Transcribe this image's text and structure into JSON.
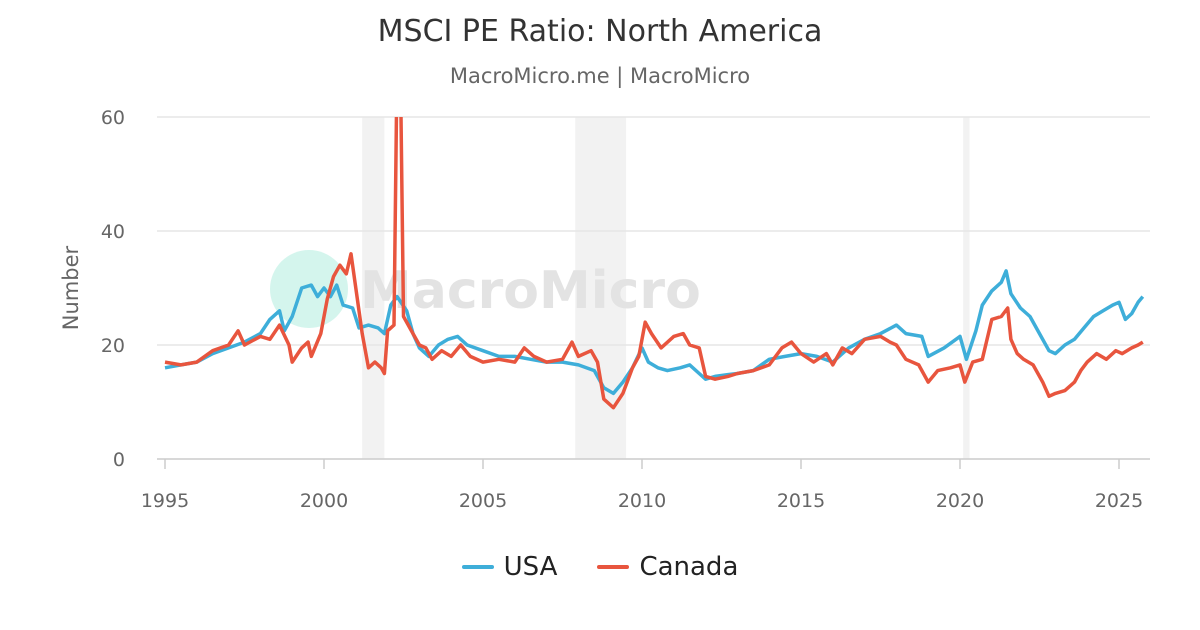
{
  "chart_data": {
    "type": "line",
    "title": "MSCI PE Ratio: North America",
    "subtitle": "MacroMicro.me | MacroMicro",
    "ylabel": "Number",
    "xlabel": "",
    "xlim": [
      1995,
      2026
    ],
    "ylim": [
      0,
      60
    ],
    "x_ticks": [
      "1995",
      "2000",
      "2005",
      "2010",
      "2015",
      "2020",
      "2025"
    ],
    "y_ticks": [
      "0",
      "20",
      "40",
      "60"
    ],
    "grid": true,
    "legend": "bottom",
    "watermark": "MacroMicro",
    "recession_shading": [
      [
        2001.2,
        2001.9
      ],
      [
        2007.9,
        2009.5
      ],
      [
        2020.1,
        2020.3
      ]
    ],
    "series": [
      {
        "name": "USA",
        "color": "#3eaed9",
        "points": [
          [
            1995.0,
            16
          ],
          [
            1995.5,
            16.5
          ],
          [
            1996.0,
            17
          ],
          [
            1996.5,
            18.5
          ],
          [
            1997.0,
            19.5
          ],
          [
            1997.5,
            20.5
          ],
          [
            1998.0,
            22
          ],
          [
            1998.3,
            24.5
          ],
          [
            1998.6,
            26
          ],
          [
            1998.75,
            22.5
          ],
          [
            1999.0,
            25
          ],
          [
            1999.3,
            30
          ],
          [
            1999.6,
            30.5
          ],
          [
            1999.8,
            28.5
          ],
          [
            2000.0,
            30
          ],
          [
            2000.2,
            28.5
          ],
          [
            2000.4,
            30.5
          ],
          [
            2000.6,
            27
          ],
          [
            2000.9,
            26.5
          ],
          [
            2001.1,
            23
          ],
          [
            2001.4,
            23.5
          ],
          [
            2001.7,
            23
          ],
          [
            2001.9,
            22
          ],
          [
            2002.1,
            27
          ],
          [
            2002.3,
            28.5
          ],
          [
            2002.6,
            26
          ],
          [
            2002.8,
            22
          ],
          [
            2003.0,
            19.5
          ],
          [
            2003.3,
            18
          ],
          [
            2003.6,
            20
          ],
          [
            2003.9,
            21
          ],
          [
            2004.2,
            21.5
          ],
          [
            2004.5,
            20
          ],
          [
            2005.0,
            19
          ],
          [
            2005.5,
            18
          ],
          [
            2006.0,
            18
          ],
          [
            2006.5,
            17.5
          ],
          [
            2007.0,
            17
          ],
          [
            2007.5,
            17
          ],
          [
            2008.0,
            16.5
          ],
          [
            2008.5,
            15.5
          ],
          [
            2008.8,
            12.5
          ],
          [
            2009.1,
            11.5
          ],
          [
            2009.4,
            13.5
          ],
          [
            2009.7,
            16
          ],
          [
            2010.0,
            19.5
          ],
          [
            2010.2,
            17
          ],
          [
            2010.5,
            16
          ],
          [
            2010.8,
            15.5
          ],
          [
            2011.2,
            16
          ],
          [
            2011.5,
            16.5
          ],
          [
            2011.8,
            15
          ],
          [
            2012.0,
            14
          ],
          [
            2012.3,
            14.5
          ],
          [
            2012.7,
            14.8
          ],
          [
            2013.0,
            15
          ],
          [
            2013.5,
            15.5
          ],
          [
            2014.0,
            17.5
          ],
          [
            2014.5,
            18
          ],
          [
            2015.0,
            18.5
          ],
          [
            2015.5,
            18
          ],
          [
            2016.0,
            17
          ],
          [
            2016.5,
            19.5
          ],
          [
            2017.0,
            21
          ],
          [
            2017.5,
            22
          ],
          [
            2018.0,
            23.5
          ],
          [
            2018.3,
            22
          ],
          [
            2018.8,
            21.5
          ],
          [
            2019.0,
            18
          ],
          [
            2019.5,
            19.5
          ],
          [
            2020.0,
            21.5
          ],
          [
            2020.2,
            17.5
          ],
          [
            2020.5,
            22.5
          ],
          [
            2020.7,
            27
          ],
          [
            2021.0,
            29.5
          ],
          [
            2021.3,
            31
          ],
          [
            2021.45,
            33
          ],
          [
            2021.6,
            29
          ],
          [
            2021.9,
            26.5
          ],
          [
            2022.2,
            25
          ],
          [
            2022.5,
            22
          ],
          [
            2022.8,
            19
          ],
          [
            2023.0,
            18.5
          ],
          [
            2023.3,
            20
          ],
          [
            2023.6,
            21
          ],
          [
            2023.9,
            23
          ],
          [
            2024.2,
            25
          ],
          [
            2024.5,
            26
          ],
          [
            2024.8,
            27
          ],
          [
            2025.0,
            27.5
          ],
          [
            2025.2,
            24.5
          ],
          [
            2025.4,
            25.5
          ],
          [
            2025.6,
            27.5
          ],
          [
            2025.75,
            28.5
          ]
        ]
      },
      {
        "name": "Canada",
        "color": "#e8553e",
        "points": [
          [
            1995.0,
            17
          ],
          [
            1995.5,
            16.5
          ],
          [
            1996.0,
            17
          ],
          [
            1996.5,
            19
          ],
          [
            1997.0,
            20
          ],
          [
            1997.3,
            22.5
          ],
          [
            1997.5,
            20
          ],
          [
            1998.0,
            21.5
          ],
          [
            1998.3,
            21
          ],
          [
            1998.6,
            23.5
          ],
          [
            1998.9,
            20
          ],
          [
            1999.0,
            17
          ],
          [
            1999.3,
            19.5
          ],
          [
            1999.5,
            20.5
          ],
          [
            1999.6,
            18
          ],
          [
            1999.9,
            22
          ],
          [
            2000.1,
            28
          ],
          [
            2000.3,
            32
          ],
          [
            2000.5,
            34
          ],
          [
            2000.7,
            32.5
          ],
          [
            2000.85,
            36
          ],
          [
            2001.0,
            30
          ],
          [
            2001.2,
            22
          ],
          [
            2001.4,
            16
          ],
          [
            2001.6,
            17
          ],
          [
            2001.8,
            16
          ],
          [
            2001.9,
            15
          ],
          [
            2002.0,
            22.5
          ],
          [
            2002.2,
            23.5
          ],
          [
            2002.3,
            70
          ],
          [
            2002.4,
            70
          ],
          [
            2002.5,
            25
          ],
          [
            2002.8,
            22
          ],
          [
            2003.0,
            20
          ],
          [
            2003.2,
            19.5
          ],
          [
            2003.4,
            17.5
          ],
          [
            2003.7,
            19
          ],
          [
            2004.0,
            18
          ],
          [
            2004.3,
            20
          ],
          [
            2004.6,
            18
          ],
          [
            2005.0,
            17
          ],
          [
            2005.5,
            17.5
          ],
          [
            2006.0,
            17
          ],
          [
            2006.3,
            19.5
          ],
          [
            2006.6,
            18
          ],
          [
            2007.0,
            17
          ],
          [
            2007.5,
            17.5
          ],
          [
            2007.8,
            20.5
          ],
          [
            2008.0,
            18
          ],
          [
            2008.4,
            19
          ],
          [
            2008.6,
            17
          ],
          [
            2008.8,
            10.5
          ],
          [
            2009.1,
            9
          ],
          [
            2009.4,
            11.5
          ],
          [
            2009.7,
            16
          ],
          [
            2009.9,
            18
          ],
          [
            2010.1,
            24
          ],
          [
            2010.3,
            22
          ],
          [
            2010.6,
            19.5
          ],
          [
            2011.0,
            21.5
          ],
          [
            2011.3,
            22
          ],
          [
            2011.5,
            20
          ],
          [
            2011.8,
            19.5
          ],
          [
            2012.0,
            14.5
          ],
          [
            2012.3,
            14
          ],
          [
            2012.7,
            14.5
          ],
          [
            2013.0,
            15
          ],
          [
            2013.5,
            15.5
          ],
          [
            2014.0,
            16.5
          ],
          [
            2014.4,
            19.5
          ],
          [
            2014.7,
            20.5
          ],
          [
            2015.0,
            18.5
          ],
          [
            2015.4,
            17
          ],
          [
            2015.8,
            18.5
          ],
          [
            2016.0,
            16.5
          ],
          [
            2016.3,
            19.5
          ],
          [
            2016.6,
            18.5
          ],
          [
            2017.0,
            21
          ],
          [
            2017.5,
            21.5
          ],
          [
            2017.8,
            20.5
          ],
          [
            2018.0,
            20
          ],
          [
            2018.3,
            17.5
          ],
          [
            2018.7,
            16.5
          ],
          [
            2019.0,
            13.5
          ],
          [
            2019.3,
            15.5
          ],
          [
            2019.7,
            16
          ],
          [
            2020.0,
            16.5
          ],
          [
            2020.15,
            13.5
          ],
          [
            2020.4,
            17
          ],
          [
            2020.7,
            17.5
          ],
          [
            2021.0,
            24.5
          ],
          [
            2021.3,
            25
          ],
          [
            2021.5,
            26.5
          ],
          [
            2021.6,
            21
          ],
          [
            2021.8,
            18.5
          ],
          [
            2022.0,
            17.5
          ],
          [
            2022.3,
            16.5
          ],
          [
            2022.6,
            13.5
          ],
          [
            2022.8,
            11
          ],
          [
            2023.0,
            11.5
          ],
          [
            2023.3,
            12
          ],
          [
            2023.6,
            13.5
          ],
          [
            2023.8,
            15.5
          ],
          [
            2024.0,
            17
          ],
          [
            2024.3,
            18.5
          ],
          [
            2024.6,
            17.5
          ],
          [
            2024.9,
            19
          ],
          [
            2025.1,
            18.5
          ],
          [
            2025.4,
            19.5
          ],
          [
            2025.6,
            20
          ],
          [
            2025.75,
            20.5
          ]
        ]
      }
    ]
  }
}
